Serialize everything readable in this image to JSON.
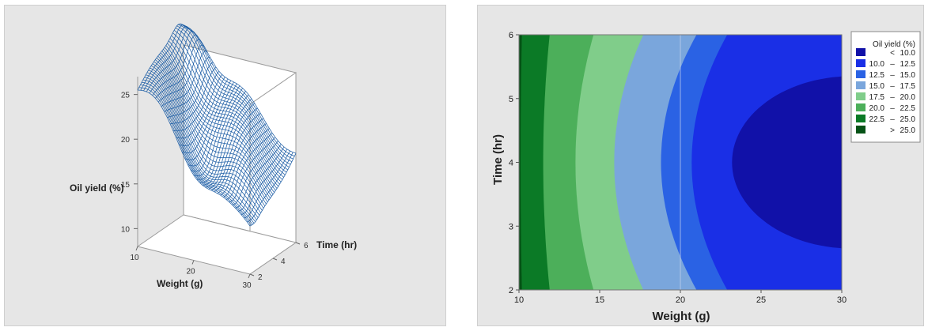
{
  "chart_data": [
    {
      "type": "surface3d",
      "xlabel": "Weight (g)",
      "ylabel": "Time (hr)",
      "zlabel": "Oil yield (%)",
      "x_ticks": [
        "10",
        "20",
        "30"
      ],
      "y_ticks": [
        "2",
        "4",
        "6"
      ],
      "z_ticks": [
        "10",
        "15",
        "20",
        "25"
      ],
      "xlim": [
        10,
        30
      ],
      "ylim": [
        2,
        6
      ],
      "zlim": [
        8,
        27
      ],
      "surface_color": "#1f5fa6",
      "corner_values": {
        "w10_t2": 25.5,
        "w10_t6": 27.0,
        "w30_t2": 13.5,
        "w30_t6": 18.5
      }
    },
    {
      "type": "contour",
      "xlabel": "Weight (g)",
      "ylabel": "Time (hr)",
      "x_ticks": [
        "10",
        "15",
        "20",
        "25",
        "30"
      ],
      "y_ticks": [
        "2",
        "3",
        "4",
        "5",
        "6"
      ],
      "xlim": [
        10,
        30
      ],
      "ylim": [
        2,
        6
      ],
      "legend": {
        "title": "Oil yield (%)",
        "position": "right",
        "entries": [
          {
            "lo": "",
            "op": "<",
            "hi": "10.0",
            "color": "#1111a8"
          },
          {
            "lo": "10.0",
            "op": "–",
            "hi": "12.5",
            "color": "#1a2fe6"
          },
          {
            "lo": "12.5",
            "op": "–",
            "hi": "15.0",
            "color": "#2a62e4"
          },
          {
            "lo": "15.0",
            "op": "–",
            "hi": "17.5",
            "color": "#7aa6dc"
          },
          {
            "lo": "17.5",
            "op": "–",
            "hi": "20.0",
            "color": "#80cd8a"
          },
          {
            "lo": "20.0",
            "op": "–",
            "hi": "22.5",
            "color": "#4caf5a"
          },
          {
            "lo": "22.5",
            "op": "–",
            "hi": "25.0",
            "color": "#0b7a26"
          },
          {
            "lo": "",
            "op": ">",
            "hi": "25.0",
            "color": "#065216"
          }
        ]
      },
      "contour_boundaries_at_t4": [
        {
          "level": 25.0,
          "weight": 10.1
        },
        {
          "level": 22.5,
          "weight": 11.5
        },
        {
          "level": 20.0,
          "weight": 13.5
        },
        {
          "level": 17.5,
          "weight": 15.9
        },
        {
          "level": 15.0,
          "weight": 18.8
        },
        {
          "level": 12.5,
          "weight": 20.7
        },
        {
          "level": 10.0,
          "weight": 23.2
        }
      ],
      "reference_line_x": 20
    }
  ]
}
